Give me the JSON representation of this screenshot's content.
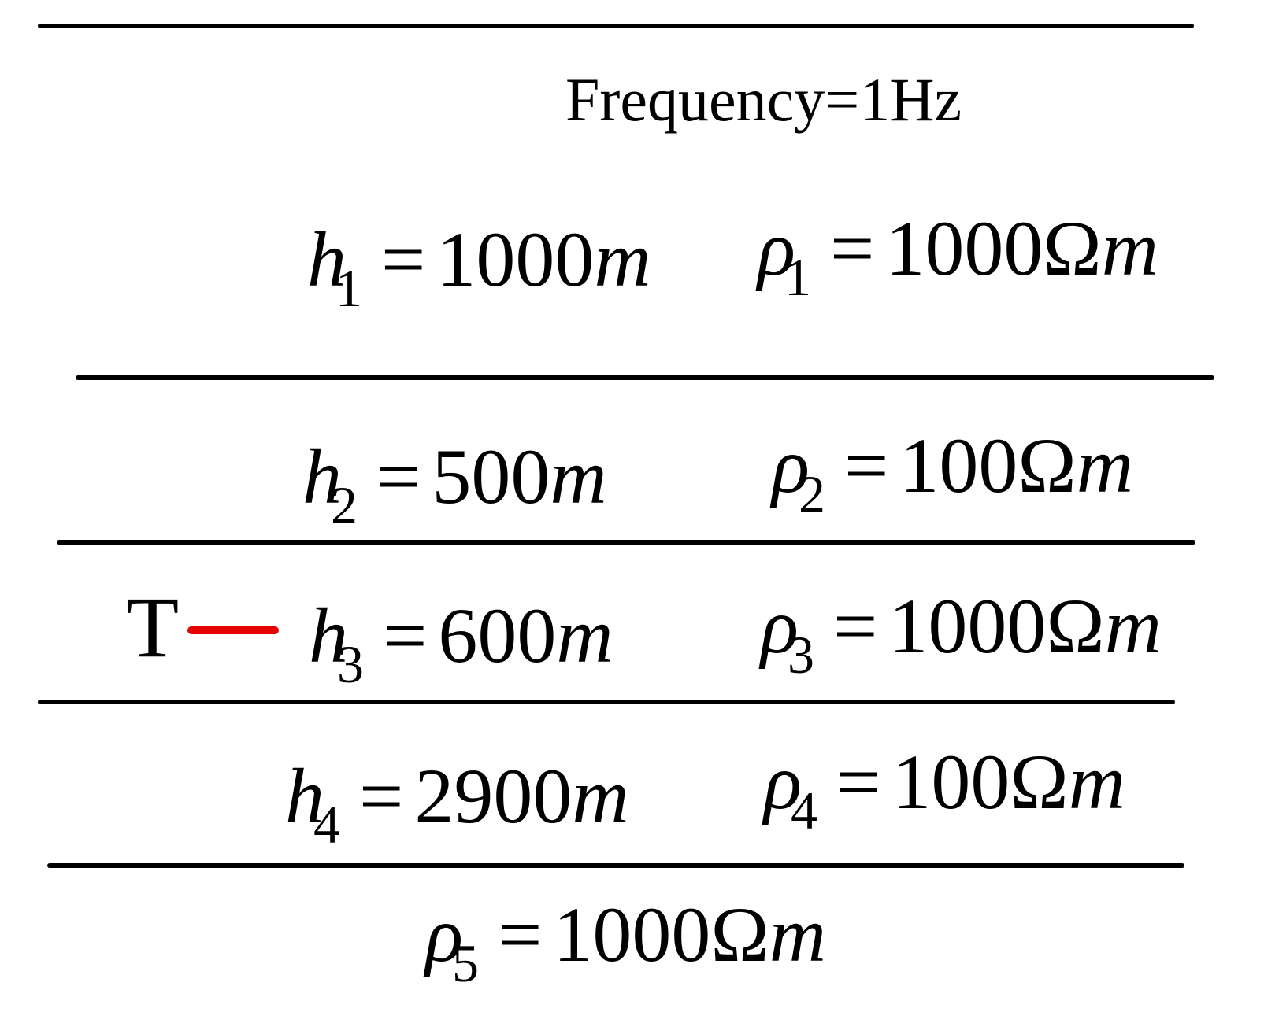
{
  "title": "Frequency=1Hz",
  "colors": {
    "lines": "#000000",
    "transmitter": "#e60000"
  },
  "transmitter_label": "T",
  "layers": [
    {
      "h_var": "h",
      "h_sub": "1",
      "h_value": "1000",
      "h_unit": "m",
      "rho_var": "ρ",
      "rho_sub": "1",
      "rho_value": "1000",
      "rho_unit_omega": "Ω",
      "rho_unit_m": "m"
    },
    {
      "h_var": "h",
      "h_sub": "2",
      "h_value": "500",
      "h_unit": "m",
      "rho_var": "ρ",
      "rho_sub": "2",
      "rho_value": "100",
      "rho_unit_omega": "Ω",
      "rho_unit_m": "m"
    },
    {
      "h_var": "h",
      "h_sub": "3",
      "h_value": "600",
      "h_unit": "m",
      "rho_var": "ρ",
      "rho_sub": "3",
      "rho_value": "1000",
      "rho_unit_omega": "Ω",
      "rho_unit_m": "m"
    },
    {
      "h_var": "h",
      "h_sub": "4",
      "h_value": "2900",
      "h_unit": "m",
      "rho_var": "ρ",
      "rho_sub": "4",
      "rho_value": "100",
      "rho_unit_omega": "Ω",
      "rho_unit_m": "m"
    }
  ],
  "halfspace": {
    "rho_var": "ρ",
    "rho_sub": "5",
    "rho_value": "1000",
    "rho_unit_omega": "Ω",
    "rho_unit_m": "m"
  },
  "equals": "="
}
